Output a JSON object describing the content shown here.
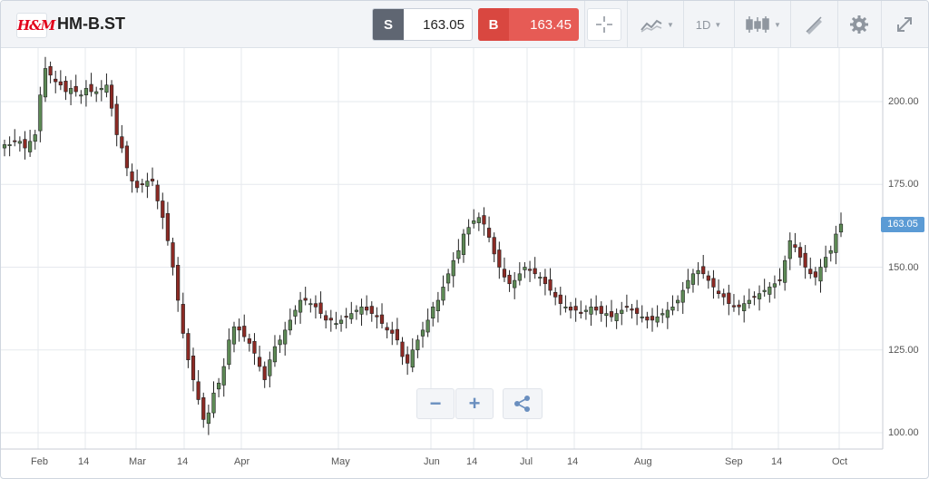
{
  "header": {
    "logo_text": "H&M",
    "symbol": "HM-B.ST",
    "sell_label": "S",
    "sell_price": "163.05",
    "buy_label": "B",
    "buy_price": "163.45",
    "interval": "1D"
  },
  "icons": {
    "crosshair": "crosshair-icon",
    "compare": "compare-chart-icon",
    "candles": "candlestick-icon",
    "draw": "draw-icon",
    "settings": "gear-icon",
    "fullscreen": "expand-icon",
    "share": "share-icon"
  },
  "zoom": {
    "minus": "−",
    "plus": "+"
  },
  "colors": {
    "up": "#5d8a55",
    "down": "#8c2a24",
    "badge": "#5b9bd5",
    "sell": "#5f6672",
    "buy": "#e65b55"
  },
  "chart_data": {
    "type": "candlestick",
    "instrument": "HM-B.ST",
    "x_ticks": [
      "Feb",
      "14",
      "Mar",
      "14",
      "Apr",
      "May",
      "Jun",
      "14",
      "Jul",
      "14",
      "Aug",
      "Sep",
      "14",
      "Oct"
    ],
    "y_ticks": [
      "200.00",
      "175.00",
      "150.00",
      "125.00",
      "100.00"
    ],
    "ylim": [
      95,
      215
    ],
    "last_price": "163.05",
    "grid": true,
    "closes": [
      187,
      187,
      188,
      188,
      186,
      188,
      190,
      202,
      210,
      208,
      206,
      205,
      203,
      204,
      203,
      202,
      204,
      203,
      203,
      204,
      205,
      198,
      190,
      186,
      180,
      176,
      174,
      175,
      176,
      176,
      170,
      165,
      158,
      150,
      140,
      130,
      122,
      116,
      110,
      104,
      106,
      112,
      115,
      120,
      128,
      132,
      131,
      129,
      127,
      124,
      120,
      116,
      122,
      126,
      128,
      131,
      134,
      137,
      140,
      140,
      139,
      138,
      136,
      134,
      134,
      133,
      134,
      135,
      136,
      137,
      138,
      137,
      136,
      135,
      133,
      131,
      130,
      128,
      123,
      121,
      125,
      128,
      131,
      134,
      138,
      140,
      144,
      148,
      152,
      155,
      160,
      162,
      164,
      165,
      163,
      159,
      154,
      150,
      147,
      145,
      146,
      148,
      150,
      149,
      148,
      147,
      145,
      143,
      141,
      139,
      138,
      137,
      137,
      136,
      137,
      138,
      137,
      136,
      136,
      135,
      136,
      137,
      138,
      137,
      136,
      135,
      134,
      134,
      135,
      136,
      137,
      138,
      140,
      143,
      146,
      148,
      149,
      148,
      146,
      144,
      142,
      141,
      139,
      138,
      138,
      139,
      140,
      141,
      142,
      143,
      144,
      145,
      146,
      152,
      158,
      156,
      153,
      150,
      148,
      147,
      150,
      153,
      155,
      160,
      163
    ]
  }
}
